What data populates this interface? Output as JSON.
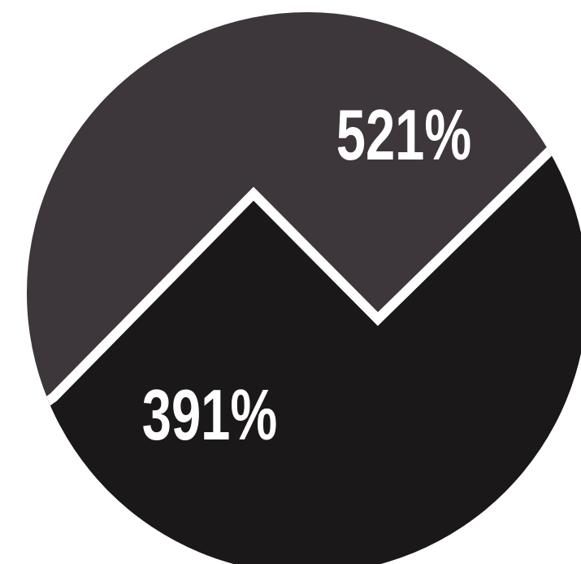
{
  "labels": {
    "upper_value": "521%",
    "lower_value": "391%"
  },
  "colors": {
    "upper_region": "#3d363b",
    "lower_region": "#1b1819",
    "divider_line": "#ffffff",
    "text": "#ffffff",
    "background": "#ffffff"
  }
}
